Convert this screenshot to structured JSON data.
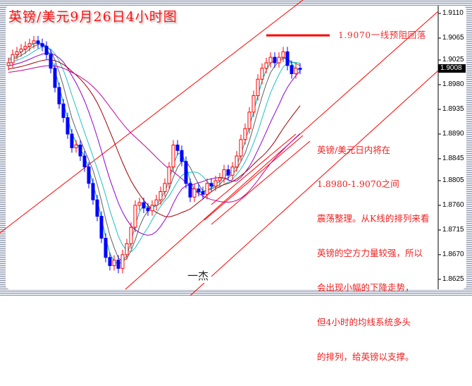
{
  "title": "英镑/美元9月26日4小时图",
  "annotation": "1.9070一线预阻回落",
  "comment": [
    "英镑/美元日内将在",
    "1.8980-1.9070之间",
    "震荡整理。从K线的排列来看",
    "英镑的空方力量较强，所以",
    "会出现小幅的下降走势，",
    "但4小时的均线系统多头",
    "的排列，给英镑以支撑。"
  ],
  "signature": "一杰",
  "current_price": "1.9008",
  "colors": {
    "up": "#ff0000",
    "down": "#0000ff",
    "trendline": "#ff0000",
    "ma": [
      "#00b0b0",
      "#606060",
      "#20c0c0",
      "#9000d0",
      "#a00000",
      "#c000a0"
    ]
  },
  "chart_data": {
    "type": "candlestick",
    "title": "英镑/美元9月26日4小时图",
    "ylim": [
      1.8615,
      1.912
    ],
    "yticks": [
      "1.9110",
      "1.9065",
      "1.9025",
      "1.8980",
      "1.8935",
      "1.8890",
      "1.8845",
      "1.8805",
      "1.8760",
      "1.8715",
      "1.8670",
      "1.8625"
    ],
    "grid": false,
    "resistance": 1.907,
    "closes": [
      1.902,
      1.9035,
      1.904,
      1.9045,
      1.905,
      1.9055,
      1.906,
      1.9055,
      1.905,
      1.9035,
      1.901,
      1.8975,
      1.8945,
      1.892,
      1.889,
      1.8865,
      1.887,
      1.885,
      1.883,
      1.88,
      1.877,
      1.874,
      1.87,
      1.8665,
      1.865,
      1.866,
      1.8645,
      1.867,
      1.869,
      1.872,
      1.876,
      1.8765,
      1.8755,
      1.875,
      1.876,
      1.877,
      1.8785,
      1.88,
      1.883,
      1.887,
      1.886,
      1.884,
      1.88,
      1.8775,
      1.879,
      1.8785,
      1.878,
      1.88,
      1.8795,
      1.8805,
      1.881,
      1.8825,
      1.8815,
      1.883,
      1.885,
      1.888,
      1.89,
      1.893,
      1.896,
      1.899,
      1.901,
      1.902,
      1.903,
      1.902,
      1.903,
      1.904,
      1.9015,
      1.9,
      1.901,
      1.9008
    ]
  }
}
